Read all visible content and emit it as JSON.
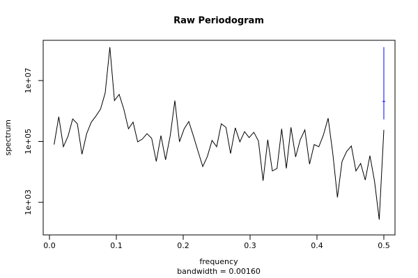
{
  "chart_data": {
    "type": "line",
    "title": "Raw Periodogram",
    "xlabel": "frequency",
    "subtitle": "bandwidth = 0.00160",
    "ylabel": "spectrum",
    "log_y": true,
    "color": "#000000",
    "x": [
      0.0069,
      0.0139,
      0.0208,
      0.0278,
      0.0347,
      0.0417,
      0.0486,
      0.0556,
      0.0625,
      0.0694,
      0.0764,
      0.0833,
      0.0903,
      0.0972,
      0.1042,
      0.1111,
      0.1181,
      0.125,
      0.1319,
      0.1389,
      0.1458,
      0.1528,
      0.1597,
      0.1667,
      0.1736,
      0.1806,
      0.1875,
      0.1944,
      0.2014,
      0.2083,
      0.2153,
      0.2222,
      0.2292,
      0.2361,
      0.2431,
      0.25,
      0.2569,
      0.2639,
      0.2708,
      0.2778,
      0.2847,
      0.2917,
      0.2986,
      0.3056,
      0.3125,
      0.3194,
      0.3264,
      0.3333,
      0.3403,
      0.3472,
      0.3542,
      0.3611,
      0.3681,
      0.375,
      0.3819,
      0.3889,
      0.3958,
      0.4028,
      0.4097,
      0.4167,
      0.4236,
      0.4306,
      0.4375,
      0.4444,
      0.4514,
      0.4583,
      0.4653,
      0.4722,
      0.4792,
      0.4861,
      0.4931,
      0.5
    ],
    "values": [
      79000,
      650000,
      67000,
      150000,
      550000,
      380000,
      38000,
      180000,
      430000,
      680000,
      1160000,
      3900000,
      125000000,
      2200000,
      3500000,
      1160000,
      260000,
      430000,
      97000,
      120000,
      180000,
      127000,
      22000,
      156000,
      25000,
      156000,
      2200000,
      97000,
      260000,
      450000,
      150000,
      47000,
      15000,
      32000,
      108000,
      67000,
      380000,
      290000,
      40000,
      280000,
      97000,
      210000,
      134000,
      200000,
      103000,
      5100,
      114000,
      10700,
      13000,
      260000,
      13000,
      290000,
      31000,
      114000,
      240000,
      18000,
      79000,
      67000,
      165000,
      580000,
      42000,
      1450,
      22000,
      47000,
      71000,
      10700,
      19000,
      5400,
      34000,
      4900,
      270,
      240000
    ],
    "ci_bar": {
      "x": 0.5,
      "lower": 530000,
      "center": 2060000,
      "upper": 125000000,
      "color": "#0000ff"
    },
    "xlim": [
      -0.0094,
      0.5167
    ],
    "ylim": [
      85,
      210000000
    ],
    "xticks": [
      {
        "value": 0,
        "label": "0.0"
      },
      0.1,
      0.2,
      0.3,
      0.4,
      0.5
    ],
    "yticks": [
      {
        "value": 1000,
        "label": "1e+03"
      },
      {
        "value": 100000,
        "label": "1e+05"
      },
      {
        "value": 10000000,
        "label": "1e+07"
      }
    ]
  }
}
